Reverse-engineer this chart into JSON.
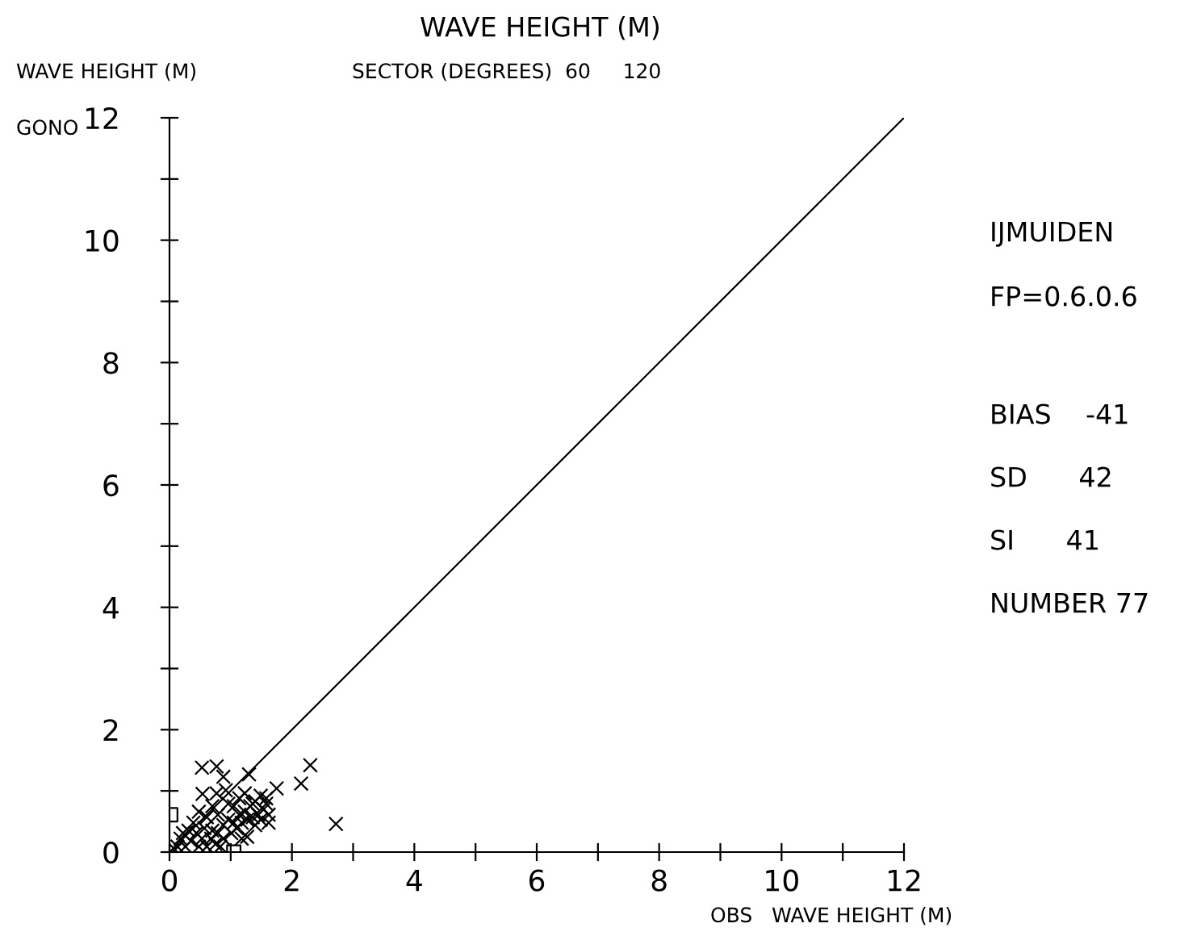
{
  "chart_data": {
    "type": "scatter",
    "title": "WAVE HEIGHT (M)",
    "xlabel": "OBS   WAVE HEIGHT (M)",
    "ylabel": "WAVE HEIGHT (M)",
    "annotations": [
      "GONO",
      "SECTOR (DEGREES)  60     120",
      "IJMUIDEN",
      "FP=0.6.0.6",
      "BIAS    -41",
      "SD      42",
      "SI      41",
      "NUMBER 77"
    ],
    "xlim": [
      0,
      12
    ],
    "ylim": [
      0,
      12
    ],
    "xticks": [
      0,
      {
        "value": 1,
        "label": null
      },
      2,
      {
        "value": 3,
        "label": null
      },
      4,
      {
        "value": 5,
        "label": null
      },
      6,
      {
        "value": 7,
        "label": null
      },
      8,
      {
        "value": 9,
        "label": null
      },
      10,
      {
        "value": 11,
        "label": null
      },
      12
    ],
    "yticks": [
      0,
      {
        "value": 1,
        "label": null
      },
      2,
      {
        "value": 3,
        "label": null
      },
      4,
      {
        "value": 5,
        "label": null
      },
      6,
      {
        "value": 7,
        "label": null
      },
      8,
      {
        "value": 9,
        "label": null
      },
      10,
      {
        "value": 11,
        "label": null
      },
      12
    ],
    "grid": false,
    "series": [
      {
        "marker": "cross",
        "color": "#000000",
        "x": [
          2.3,
          2.15,
          2.72,
          0.53,
          0.77,
          0.88,
          1.3,
          0.54,
          0.77,
          1.75,
          1.58,
          1.27,
          0.18,
          0.26,
          0.35,
          0.44,
          0.22,
          0.57,
          0.61,
          0.68,
          0.75,
          0.79,
          0.88,
          0.96,
          1.05,
          1.14,
          1.23,
          1.32,
          1.4,
          1.49,
          1.54,
          1.45,
          1.36,
          1.27,
          1.18,
          1.62,
          1.58,
          1.05,
          0.96,
          1.14,
          1.23,
          0.92,
          0.7,
          0.48,
          0.39,
          0.31,
          0.13,
          0.09,
          0.61,
          0.83,
          0.7,
          0.53,
          1.01,
          1.1,
          1.18,
          1.4,
          1.62,
          1.49,
          1.36,
          0.79,
          0.88,
          0.48
        ],
        "values": [
          1.42,
          1.12,
          0.46,
          1.38,
          1.4,
          1.23,
          1.27,
          0.95,
          0.96,
          1.04,
          0.88,
          0.25,
          0.22,
          0.09,
          0.18,
          0.31,
          0.31,
          0.39,
          0.57,
          0.22,
          0.13,
          0.31,
          0.44,
          0.53,
          0.48,
          0.61,
          0.66,
          0.75,
          0.83,
          0.92,
          0.7,
          0.61,
          0.57,
          0.53,
          0.48,
          0.61,
          0.79,
          0.75,
          0.79,
          0.88,
          0.96,
          1.01,
          0.75,
          0.66,
          0.48,
          0.35,
          0.09,
          0.04,
          0.09,
          0.09,
          0.35,
          0.22,
          0.31,
          0.39,
          0.22,
          0.44,
          0.48,
          0.53,
          0.79,
          0.61,
          0.22,
          0.09
        ]
      },
      {
        "marker": "square",
        "color": "#000000",
        "x": [
          0.02,
          1.05
        ],
        "values": [
          0.61,
          0.0
        ]
      },
      {
        "type": "line",
        "color": "#000000",
        "line_style": "solid",
        "x": [
          0,
          12
        ],
        "values": [
          0,
          12
        ]
      }
    ]
  }
}
